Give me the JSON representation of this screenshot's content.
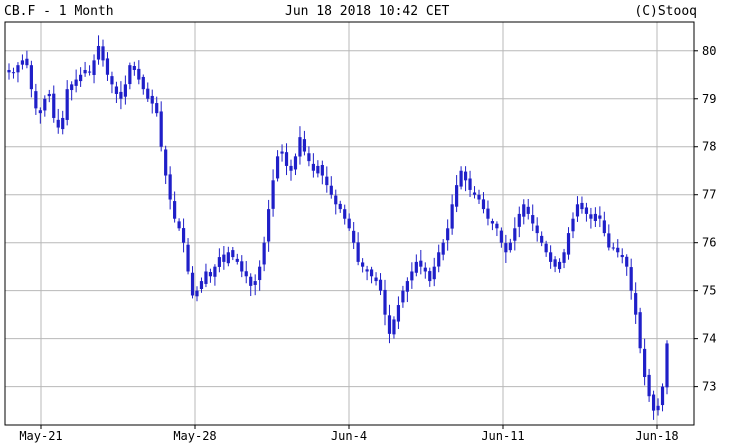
{
  "header": {
    "left": "CB.F - 1 Month",
    "center": "Jun 18 2018 10:42 CET",
    "right": "(C)Stooq"
  },
  "colors": {
    "candle": "#1f1fc8",
    "grid": "#b8b8b8",
    "frame": "#000000"
  },
  "chart_data": {
    "type": "candlestick",
    "title": "",
    "xlabel": "",
    "ylabel": "",
    "ylim": [
      72.2,
      80.6
    ],
    "y_ticks": [
      73,
      74,
      75,
      76,
      77,
      78,
      79,
      80
    ],
    "x_tick_labels": [
      "May-21",
      "May-28",
      "Jun-4",
      "Jun-11",
      "Jun-18"
    ],
    "grid": true,
    "y_axis_side": "right",
    "close_trace": [
      79.6,
      79.55,
      79.7,
      79.8,
      79.7,
      79.2,
      78.8,
      78.7,
      79.0,
      79.1,
      78.6,
      78.4,
      78.6,
      79.2,
      79.3,
      79.4,
      79.5,
      79.6,
      79.55,
      79.8,
      80.1,
      79.8,
      79.5,
      79.3,
      79.1,
      79.0,
      79.3,
      79.7,
      79.6,
      79.4,
      79.2,
      79.0,
      78.9,
      78.7,
      78.0,
      77.4,
      76.9,
      76.5,
      76.3,
      76.0,
      75.4,
      74.9,
      75.0,
      75.2,
      75.4,
      75.3,
      75.5,
      75.7,
      75.6,
      75.8,
      75.7,
      75.6,
      75.4,
      75.3,
      75.1,
      75.2,
      75.5,
      76.0,
      76.7,
      77.3,
      77.8,
      77.9,
      77.6,
      77.5,
      77.8,
      78.2,
      77.9,
      77.7,
      77.5,
      77.6,
      77.4,
      77.2,
      77.0,
      76.8,
      76.7,
      76.5,
      76.3,
      76.0,
      75.6,
      75.5,
      75.4,
      75.3,
      75.2,
      75.0,
      74.5,
      74.1,
      74.4,
      74.7,
      75.0,
      75.2,
      75.4,
      75.6,
      75.5,
      75.4,
      75.2,
      75.5,
      75.8,
      76.0,
      76.3,
      76.8,
      77.2,
      77.5,
      77.3,
      77.1,
      77.0,
      76.9,
      76.7,
      76.5,
      76.4,
      76.3,
      76.0,
      75.8,
      76.0,
      76.3,
      76.6,
      76.8,
      76.6,
      76.4,
      76.2,
      76.0,
      75.8,
      75.6,
      75.5,
      75.6,
      75.8,
      76.2,
      76.5,
      76.8,
      76.7,
      76.6,
      76.5,
      76.6,
      76.5,
      76.2,
      75.9,
      75.9,
      75.8,
      75.7,
      75.5,
      75.0,
      74.5,
      73.8,
      73.2,
      72.8,
      72.5,
      72.6,
      73.0,
      73.9
    ],
    "notes": "1 month chart of CB.F, candlestick prices approximately between 72.5 and 80.4"
  }
}
